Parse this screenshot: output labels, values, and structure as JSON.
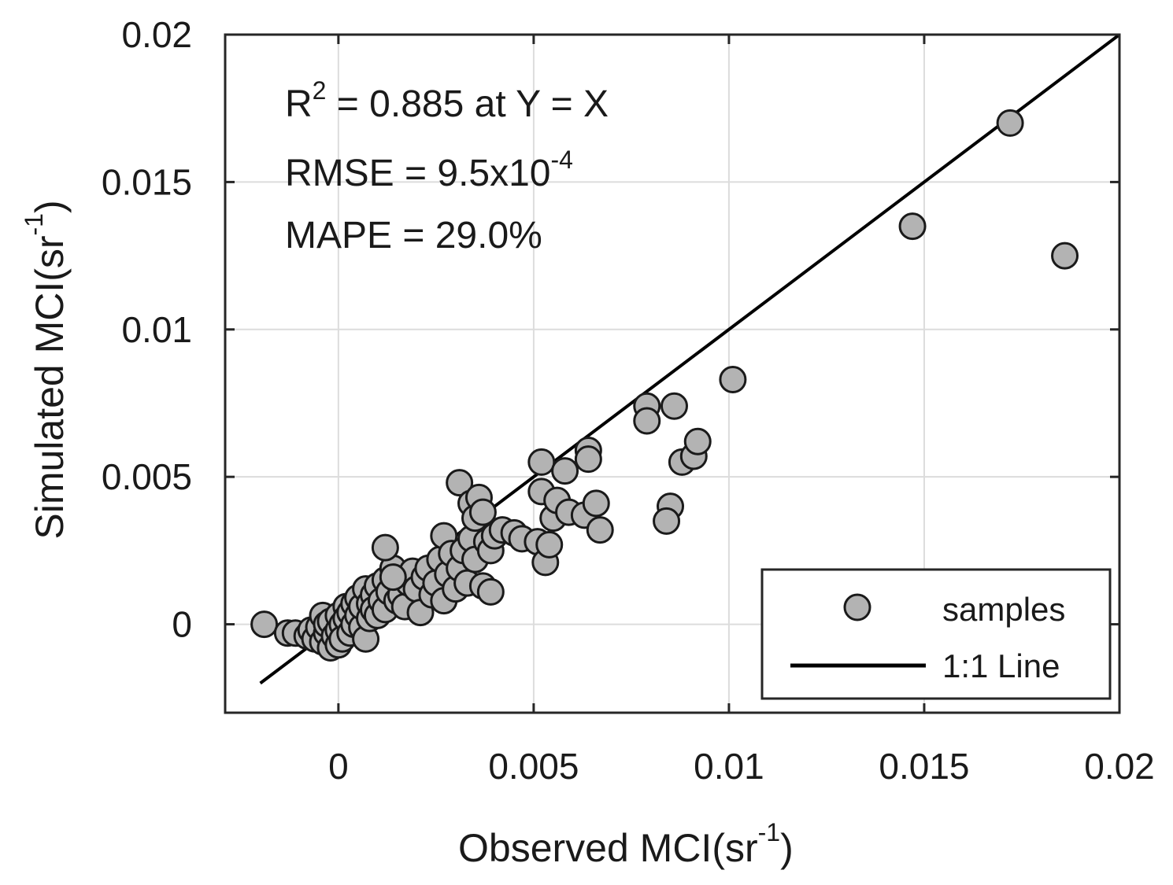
{
  "chart_data": {
    "type": "scatter",
    "xlabel": "Observed MCI(sr",
    "xlabel_sup": "-1",
    "xlabel_close": ")",
    "ylabel": "Simulated MCI(sr",
    "ylabel_sup": "-1",
    "ylabel_close": ")",
    "xlim": [
      -0.0029,
      0.02
    ],
    "ylim": [
      -0.003,
      0.02
    ],
    "xticks": [
      0,
      0.005,
      0.01,
      0.015,
      0.02
    ],
    "xtick_labels": [
      "0",
      "0.005",
      "0.01",
      "0.015",
      "0.02"
    ],
    "yticks": [
      0,
      0.005,
      0.01,
      0.015,
      0.02
    ],
    "ytick_labels": [
      "0",
      "0.005",
      "0.01",
      "0.015",
      "0.02"
    ],
    "grid": true,
    "annotations": {
      "r2_prefix": "R",
      "r2_sup": "2",
      "r2_suffix": " = 0.885 at Y = X",
      "rmse_prefix": "RMSE = 9.5x10",
      "rmse_sup": "-4",
      "mape": "MAPE = 29.0%"
    },
    "legend": {
      "position": "bottom-right",
      "entries": [
        "samples",
        "1:1 Line"
      ]
    },
    "line": {
      "name": "1:1 Line",
      "x": [
        -0.002,
        0.02
      ],
      "y": [
        -0.002,
        0.02
      ],
      "color": "#000000"
    },
    "series": [
      {
        "name": "samples",
        "marker_color": "#b3b3b3",
        "edge_color": "#1a1a1a",
        "points": [
          [
            -0.0019,
            0.0
          ],
          [
            -0.0013,
            -0.0003
          ],
          [
            -0.0011,
            -0.0003
          ],
          [
            -0.0008,
            -0.0004
          ],
          [
            -0.0007,
            -0.0002
          ],
          [
            -0.0006,
            -0.0005
          ],
          [
            -0.0005,
            -0.0001
          ],
          [
            -0.0004,
            0.0003
          ],
          [
            -0.0004,
            -0.0006
          ],
          [
            -0.0003,
            -0.0003
          ],
          [
            -0.0003,
            0.0
          ],
          [
            -0.0002,
            -0.0008
          ],
          [
            -0.0002,
            0.0001
          ],
          [
            -0.0001,
            -0.0004
          ],
          [
            0.0,
            -0.0007
          ],
          [
            0.0,
            -0.0002
          ],
          [
            0.0,
            0.0003
          ],
          [
            0.0001,
            0.0
          ],
          [
            0.0001,
            -0.0005
          ],
          [
            0.0002,
            0.0006
          ],
          [
            0.0002,
            0.0002
          ],
          [
            0.0003,
            -0.0003
          ],
          [
            0.0003,
            0.0004
          ],
          [
            0.0004,
            0.0007
          ],
          [
            0.0004,
            0.0
          ],
          [
            0.0005,
            0.0009
          ],
          [
            0.0005,
            0.0003
          ],
          [
            0.0006,
            -0.0001
          ],
          [
            0.0006,
            0.0006
          ],
          [
            0.0007,
            0.0012
          ],
          [
            0.0007,
            -0.0005
          ],
          [
            0.0008,
            0.0007
          ],
          [
            0.0008,
            0.0002
          ],
          [
            0.0009,
            0.001
          ],
          [
            0.0009,
            0.0005
          ],
          [
            0.001,
            0.0013
          ],
          [
            0.001,
            0.0003
          ],
          [
            0.0011,
            0.0008
          ],
          [
            0.0012,
            0.0015
          ],
          [
            0.0012,
            0.0005
          ],
          [
            0.0013,
            0.0011
          ],
          [
            0.0014,
            0.0019
          ],
          [
            0.0015,
            0.0015
          ],
          [
            0.0015,
            0.0008
          ],
          [
            0.0016,
            0.001
          ],
          [
            0.0017,
            0.0006
          ],
          [
            0.0018,
            0.0014
          ],
          [
            0.0019,
            0.0018
          ],
          [
            0.002,
            0.0012
          ],
          [
            0.0021,
            0.0004
          ],
          [
            0.0022,
            0.0016
          ],
          [
            0.0023,
            0.0019
          ],
          [
            0.0024,
            0.001
          ],
          [
            0.0025,
            0.0014
          ],
          [
            0.0026,
            0.0022
          ],
          [
            0.0027,
            0.0008
          ],
          [
            0.0027,
            0.003
          ],
          [
            0.0028,
            0.0017
          ],
          [
            0.0029,
            0.0024
          ],
          [
            0.003,
            0.0012
          ],
          [
            0.0031,
            0.0048
          ],
          [
            0.0031,
            0.0019
          ],
          [
            0.0032,
            0.0025
          ],
          [
            0.0033,
            0.0014
          ],
          [
            0.0034,
            0.0041
          ],
          [
            0.0034,
            0.0029
          ],
          [
            0.0035,
            0.0036
          ],
          [
            0.0035,
            0.0022
          ],
          [
            0.0036,
            0.0043
          ],
          [
            0.0037,
            0.0013
          ],
          [
            0.0037,
            0.0038
          ],
          [
            0.0038,
            0.0028
          ],
          [
            0.0039,
            0.0025
          ],
          [
            0.0039,
            0.0011
          ],
          [
            0.004,
            0.003
          ],
          [
            0.0042,
            0.0032
          ],
          [
            0.0045,
            0.0031
          ],
          [
            0.0047,
            0.0029
          ],
          [
            0.0012,
            0.0026
          ],
          [
            0.0014,
            0.0016
          ],
          [
            0.0051,
            0.0028
          ],
          [
            0.0052,
            0.0055
          ],
          [
            0.0052,
            0.0045
          ],
          [
            0.0053,
            0.0021
          ],
          [
            0.0054,
            0.0027
          ],
          [
            0.0055,
            0.0036
          ],
          [
            0.0056,
            0.0042
          ],
          [
            0.0058,
            0.0052
          ],
          [
            0.0059,
            0.0038
          ],
          [
            0.0063,
            0.0037
          ],
          [
            0.0064,
            0.0059
          ],
          [
            0.0064,
            0.0056
          ],
          [
            0.0066,
            0.0041
          ],
          [
            0.0067,
            0.0032
          ],
          [
            0.0079,
            0.0074
          ],
          [
            0.0079,
            0.0069
          ],
          [
            0.0085,
            0.004
          ],
          [
            0.0084,
            0.0035
          ],
          [
            0.0086,
            0.0074
          ],
          [
            0.0088,
            0.0055
          ],
          [
            0.0091,
            0.0057
          ],
          [
            0.0092,
            0.0062
          ],
          [
            0.0101,
            0.0083
          ],
          [
            0.0147,
            0.0135
          ],
          [
            0.0172,
            0.017
          ],
          [
            0.0186,
            0.0125
          ]
        ]
      }
    ]
  }
}
